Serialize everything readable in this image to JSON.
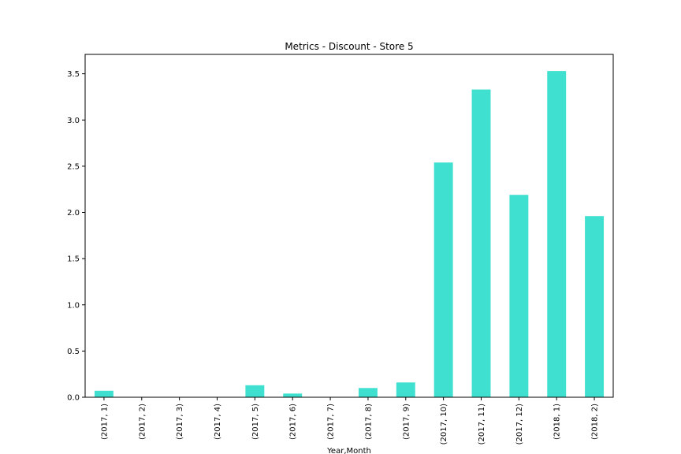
{
  "chart_data": {
    "type": "bar",
    "title": "Metrics - Discount - Store 5",
    "xlabel": "Year,Month",
    "ylabel": "",
    "categories": [
      "(2017, 1)",
      "(2017, 2)",
      "(2017, 3)",
      "(2017, 4)",
      "(2017, 5)",
      "(2017, 6)",
      "(2017, 7)",
      "(2017, 8)",
      "(2017, 9)",
      "(2017, 10)",
      "(2017, 11)",
      "(2017, 12)",
      "(2018, 1)",
      "(2018, 2)"
    ],
    "values": [
      0.07,
      0,
      0,
      0,
      0.13,
      0.04,
      0,
      0.1,
      0.16,
      2.54,
      3.33,
      2.19,
      3.53,
      1.96
    ],
    "ylim": [
      0,
      3.71
    ],
    "yticks": [
      "0.0",
      "0.5",
      "1.0",
      "1.5",
      "2.0",
      "2.5",
      "3.0",
      "3.5"
    ],
    "ytick_values": [
      0,
      0.5,
      1.0,
      1.5,
      2.0,
      2.5,
      3.0,
      3.5
    ],
    "bar_color": "#40e0d0",
    "grid": false,
    "legend": "none"
  }
}
